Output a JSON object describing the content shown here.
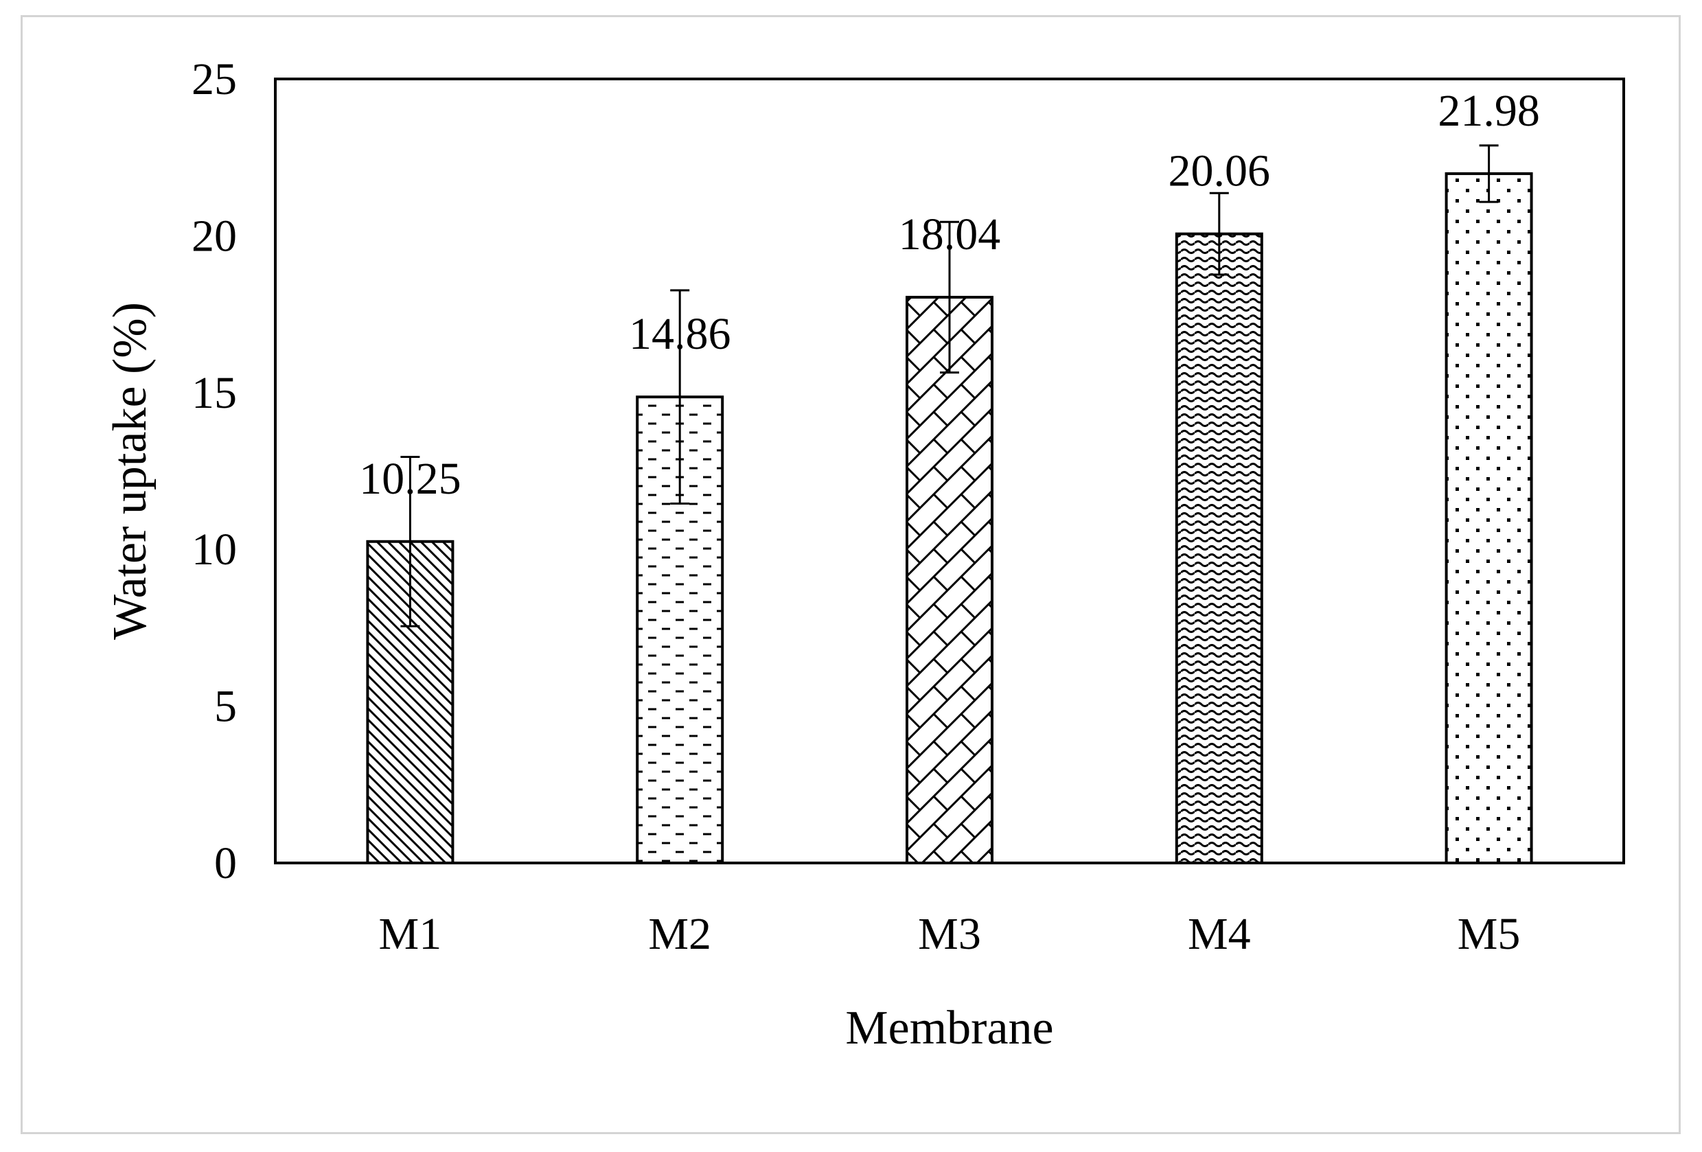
{
  "chart_data": {
    "type": "bar",
    "title": "",
    "xlabel": "Membrane",
    "ylabel": "Water uptake (%)",
    "ylim": [
      0,
      25
    ],
    "yticks": [
      0,
      5,
      10,
      15,
      20,
      25
    ],
    "categories": [
      "M1",
      "M2",
      "M3",
      "M4",
      "M5"
    ],
    "values": [
      10.25,
      14.86,
      18.04,
      20.06,
      21.98
    ],
    "data_labels": [
      "10.25",
      "14.86",
      "18.04",
      "20.06",
      "21.98"
    ],
    "error": [
      2.7,
      3.4,
      2.4,
      1.3,
      0.9
    ],
    "patterns": [
      "diagonal-hatch",
      "dashes",
      "diamond-lattice",
      "waves",
      "dots"
    ],
    "grid": false,
    "legend": "none"
  },
  "colors": {
    "bar_fill": "#ffffff",
    "stroke": "#000000",
    "frame_border": "#d4d4d4"
  }
}
